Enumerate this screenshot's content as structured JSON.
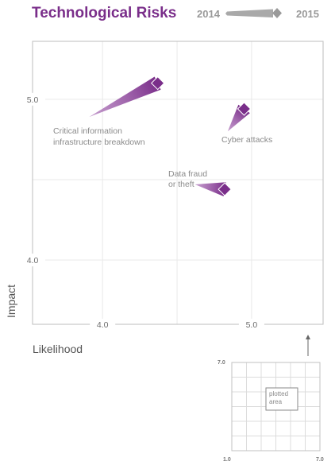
{
  "colors": {
    "accent": "#7a2e8a",
    "trail": "#b27cbd",
    "legend_bar": "#a9a9a9",
    "grid": "#e9e9e9",
    "frame": "#bdbdbd"
  },
  "chart_data": {
    "type": "scatter",
    "title": "Technological Risks",
    "legend": {
      "from": "2014",
      "to": "2015",
      "placement": "top-right"
    },
    "xlabel": "Likelihood",
    "ylabel": "Impact",
    "xlim": [
      3.53,
      5.48
    ],
    "ylim": [
      3.6,
      5.36
    ],
    "x_ticks": [
      {
        "value": 4.0,
        "label": "4.0"
      },
      {
        "value": 5.0,
        "label": "5.0"
      }
    ],
    "y_ticks": [
      {
        "value": 4.0,
        "label": "4.0"
      },
      {
        "value": 5.0,
        "label": "5.0"
      }
    ],
    "grid": true,
    "points": [
      {
        "name": "Critical information\ninfrastructure breakdown",
        "x2014": 3.91,
        "y2014": 4.89,
        "x2015": 4.37,
        "y2015": 5.1
      },
      {
        "name": "Cyber attacks",
        "x2014": 4.84,
        "y2014": 4.8,
        "x2015": 4.95,
        "y2015": 4.94
      },
      {
        "name": "Data fraud\nor theft",
        "x2014": 4.62,
        "y2014": 4.47,
        "x2015": 4.82,
        "y2015": 4.44
      }
    ],
    "inset": {
      "axis_min": "1.0",
      "axis_max": "7.0",
      "y_max": "7.0",
      "label": "plotted\narea"
    }
  }
}
